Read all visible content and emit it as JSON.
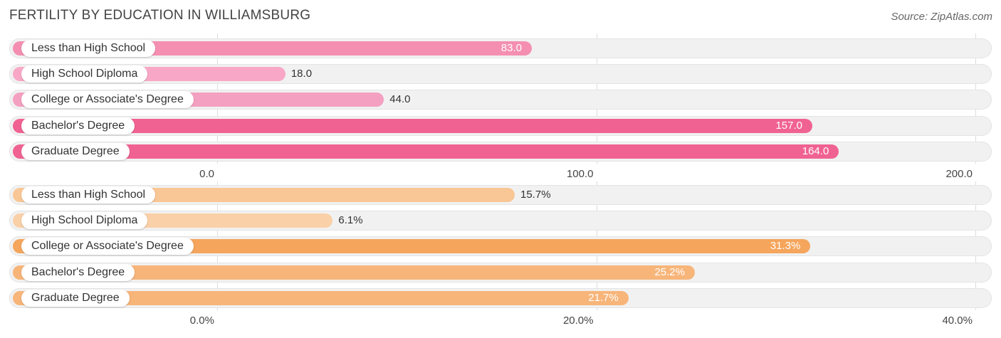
{
  "title": "FERTILITY BY EDUCATION IN WILLIAMSBURG",
  "source": "Source: ZipAtlas.com",
  "chart_data": [
    {
      "type": "bar",
      "orientation": "horizontal",
      "categories": [
        "Less than High School",
        "High School Diploma",
        "College or Associate's Degree",
        "Bachelor's Degree",
        "Graduate Degree"
      ],
      "values": [
        83.0,
        18.0,
        44.0,
        157.0,
        164.0
      ],
      "value_labels": [
        "83.0",
        "18.0",
        "44.0",
        "157.0",
        "164.0"
      ],
      "colors": [
        "#f48fb1",
        "#f8a8c6",
        "#f4a0c0",
        "#f06292",
        "#f06292"
      ],
      "xlim": [
        0,
        200
      ],
      "xticks": [
        0,
        100,
        200
      ],
      "xtick_labels": [
        "0.0",
        "100.0",
        "200.0"
      ]
    },
    {
      "type": "bar",
      "orientation": "horizontal",
      "categories": [
        "Less than High School",
        "High School Diploma",
        "College or Associate's Degree",
        "Bachelor's Degree",
        "Graduate Degree"
      ],
      "values": [
        15.7,
        6.1,
        31.3,
        25.2,
        21.7
      ],
      "value_labels": [
        "15.7%",
        "6.1%",
        "31.3%",
        "25.2%",
        "21.7%"
      ],
      "colors": [
        "#f9c695",
        "#fad0a8",
        "#f5a55c",
        "#f7b57a",
        "#f7b57a"
      ],
      "xlim": [
        0,
        40
      ],
      "xticks": [
        0,
        20,
        40
      ],
      "xtick_labels": [
        "0.0%",
        "20.0%",
        "40.0%"
      ]
    }
  ]
}
